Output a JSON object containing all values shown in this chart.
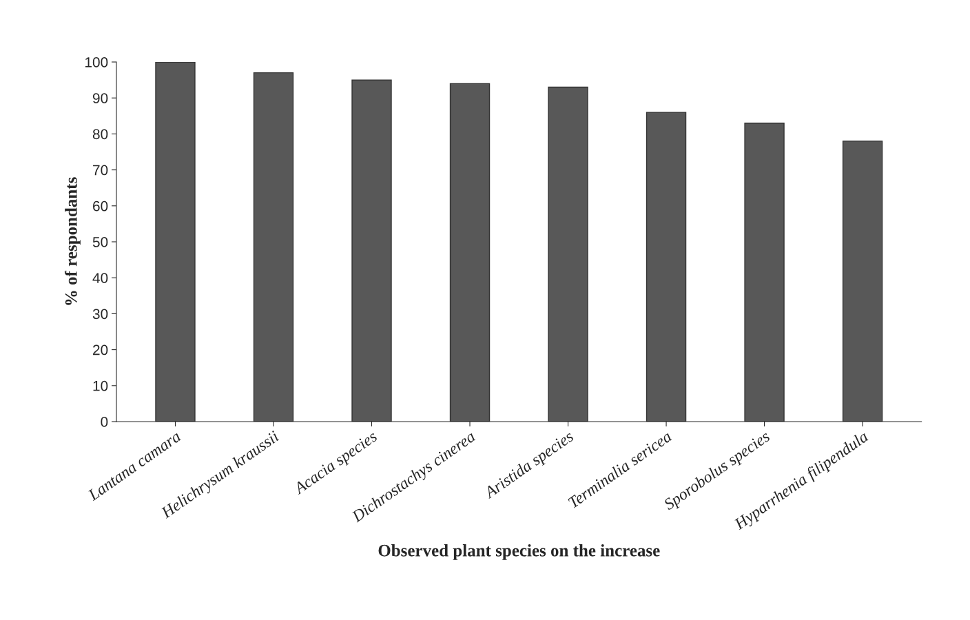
{
  "chart_data": {
    "type": "bar",
    "xlabel": "Observed plant species on the increase",
    "ylabel": "% of respondants",
    "categories": [
      "Lantana camara",
      "Helichrysum kraussii",
      "Acacia species",
      "Dichrostachys cinerea",
      "Aristida species",
      "Terminalia sericea",
      "Sporobolus species",
      "Hyparrhenia filipendula"
    ],
    "values": [
      100,
      97,
      95,
      94,
      93,
      86,
      83,
      78
    ],
    "color": "#585858",
    "ylim": [
      0,
      100
    ],
    "yticks": [
      0,
      10,
      20,
      30,
      40,
      50,
      60,
      70,
      80,
      90,
      100
    ],
    "grid": false,
    "legend": false
  }
}
